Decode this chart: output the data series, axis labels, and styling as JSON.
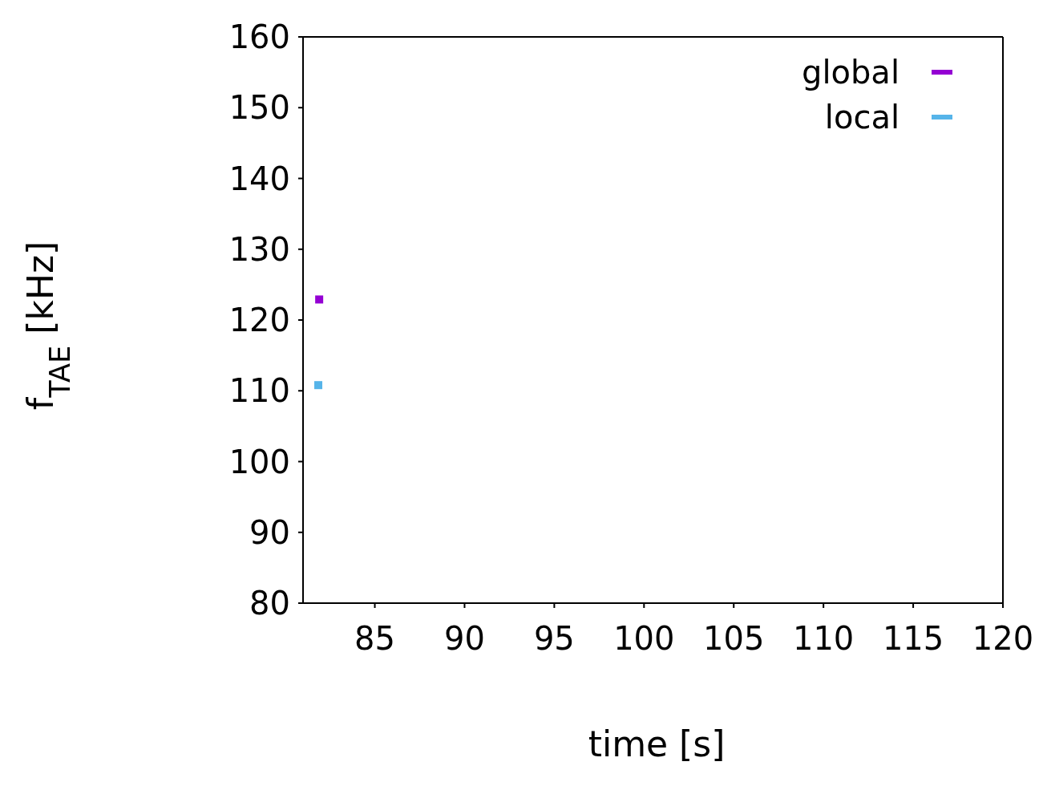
{
  "chart_data": {
    "type": "scatter",
    "xlabel": "time [s]",
    "ylabel": "f$_{TAE}$ [kHz]",
    "series": [
      {
        "name": "global",
        "color": "#9400d3",
        "x": [
          81.9
        ],
        "values": [
          122.9
        ]
      },
      {
        "name": "local",
        "color": "#56b4e9",
        "x": [
          81.85
        ],
        "values": [
          110.8
        ]
      }
    ],
    "xlim": [
      81,
      120
    ],
    "xticks": [
      85,
      90,
      95,
      100,
      105,
      110,
      115,
      120
    ],
    "ylim": [
      80,
      160
    ],
    "yticks": [
      80,
      90,
      100,
      110,
      120,
      130,
      140,
      150,
      160
    ],
    "grid": false,
    "legend": "top right",
    "marker": "square"
  }
}
